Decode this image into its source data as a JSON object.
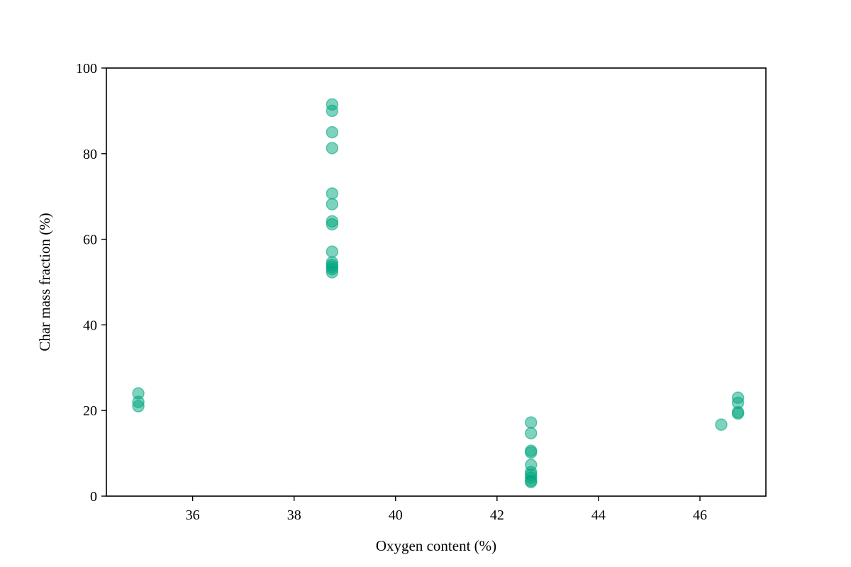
{
  "chart_data": {
    "type": "scatter",
    "title": "",
    "xlabel": "Oxygen content (%)",
    "ylabel": "Char mass fraction (%)",
    "xlim": [
      34.3,
      47.3
    ],
    "ylim": [
      0,
      100
    ],
    "xticks": [
      36,
      38,
      40,
      42,
      44,
      46
    ],
    "yticks": [
      0,
      20,
      40,
      60,
      80,
      100
    ],
    "grid": false,
    "legend": "none",
    "marker_color": "#00a67e",
    "marker_alpha": 0.5,
    "series": [
      {
        "points": [
          {
            "x": 34.93,
            "y": 24.0
          },
          {
            "x": 34.93,
            "y": 22.0
          },
          {
            "x": 34.93,
            "y": 21.0
          },
          {
            "x": 38.75,
            "y": 91.5
          },
          {
            "x": 38.75,
            "y": 90.0
          },
          {
            "x": 38.75,
            "y": 85.0
          },
          {
            "x": 38.75,
            "y": 81.3
          },
          {
            "x": 38.75,
            "y": 70.7
          },
          {
            "x": 38.75,
            "y": 68.2
          },
          {
            "x": 38.75,
            "y": 64.2
          },
          {
            "x": 38.75,
            "y": 63.5
          },
          {
            "x": 38.75,
            "y": 57.1
          },
          {
            "x": 38.75,
            "y": 54.6
          },
          {
            "x": 38.75,
            "y": 54.0
          },
          {
            "x": 38.75,
            "y": 53.5
          },
          {
            "x": 38.75,
            "y": 53.0
          },
          {
            "x": 38.75,
            "y": 52.3
          },
          {
            "x": 42.67,
            "y": 17.2
          },
          {
            "x": 42.67,
            "y": 14.7
          },
          {
            "x": 42.67,
            "y": 10.6
          },
          {
            "x": 42.67,
            "y": 10.2
          },
          {
            "x": 42.67,
            "y": 7.3
          },
          {
            "x": 42.67,
            "y": 5.6
          },
          {
            "x": 42.67,
            "y": 5.0
          },
          {
            "x": 42.67,
            "y": 4.3
          },
          {
            "x": 42.67,
            "y": 3.6
          },
          {
            "x": 42.67,
            "y": 3.3
          },
          {
            "x": 46.42,
            "y": 16.7
          },
          {
            "x": 46.75,
            "y": 23.0
          },
          {
            "x": 46.75,
            "y": 21.8
          },
          {
            "x": 46.75,
            "y": 19.6
          },
          {
            "x": 46.75,
            "y": 19.3
          }
        ]
      }
    ]
  }
}
